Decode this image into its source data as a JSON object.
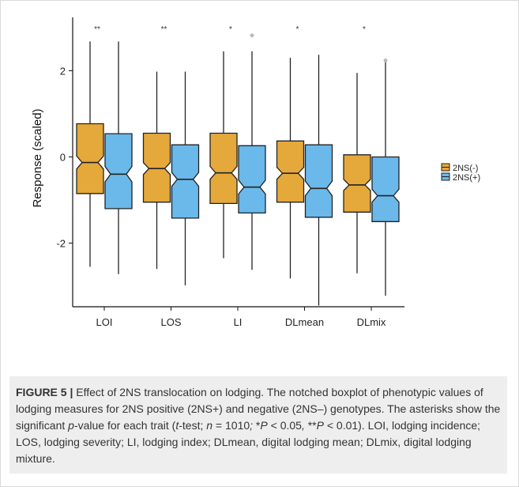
{
  "chart_data": {
    "type": "boxplot",
    "notched": true,
    "title": "",
    "xlabel": "",
    "ylabel": "Response (scaled)",
    "ylim": [
      -3.5,
      3.1
    ],
    "yticks": [
      -2,
      0,
      2
    ],
    "ytick_labels": [
      "-2",
      "0",
      "2"
    ],
    "categories": [
      "LOI",
      "LOS",
      "LI",
      "DLmean",
      "DLmix"
    ],
    "significance": [
      "**",
      "**",
      "*",
      "*",
      "*"
    ],
    "legend": {
      "position": "right",
      "entries": [
        "2NS(-)",
        "2NS(+)"
      ]
    },
    "grid": false,
    "series": [
      {
        "name": "2NS(-)",
        "color": "#e5a83a",
        "boxes": [
          {
            "whisker_low": -2.55,
            "q1": -0.85,
            "median": -0.13,
            "q3": 0.77,
            "whisker_high": 2.68,
            "notch_low": -0.28,
            "notch_high": 0.02,
            "outliers": []
          },
          {
            "whisker_low": -2.6,
            "q1": -1.05,
            "median": -0.27,
            "q3": 0.55,
            "whisker_high": 1.98,
            "notch_low": -0.41,
            "notch_high": -0.13,
            "outliers": []
          },
          {
            "whisker_low": -2.35,
            "q1": -1.08,
            "median": -0.37,
            "q3": 0.55,
            "whisker_high": 2.45,
            "notch_low": -0.52,
            "notch_high": -0.22,
            "outliers": []
          },
          {
            "whisker_low": -2.82,
            "q1": -1.05,
            "median": -0.38,
            "q3": 0.37,
            "whisker_high": 2.3,
            "notch_low": -0.52,
            "notch_high": -0.24,
            "outliers": []
          },
          {
            "whisker_low": -2.7,
            "q1": -1.28,
            "median": -0.65,
            "q3": 0.05,
            "whisker_high": 1.95,
            "notch_low": -0.78,
            "notch_high": -0.52,
            "outliers": []
          }
        ]
      },
      {
        "name": "2NS(+)",
        "color": "#6ab9ea",
        "boxes": [
          {
            "whisker_low": -2.72,
            "q1": -1.2,
            "median": -0.4,
            "q3": 0.54,
            "whisker_high": 2.68,
            "notch_low": -0.58,
            "notch_high": -0.22,
            "outliers": []
          },
          {
            "whisker_low": -2.98,
            "q1": -1.42,
            "median": -0.52,
            "q3": 0.28,
            "whisker_high": 1.98,
            "notch_low": -0.68,
            "notch_high": -0.36,
            "outliers": []
          },
          {
            "whisker_low": -2.62,
            "q1": -1.3,
            "median": -0.7,
            "q3": 0.26,
            "whisker_high": 2.45,
            "notch_low": -0.86,
            "notch_high": -0.54,
            "outliers": [
              2.82
            ]
          },
          {
            "whisker_low": -3.45,
            "q1": -1.4,
            "median": -0.73,
            "q3": 0.28,
            "whisker_high": 2.37,
            "notch_low": -0.9,
            "notch_high": -0.56,
            "outliers": []
          },
          {
            "whisker_low": -3.22,
            "q1": -1.5,
            "median": -0.9,
            "q3": 0.0,
            "whisker_high": 2.22,
            "notch_low": -1.05,
            "notch_high": -0.75,
            "outliers": [
              2.24
            ]
          }
        ]
      }
    ]
  },
  "caption": {
    "label": "FIGURE 5 |",
    "segments": [
      {
        "t": " Effect of 2NS translocation on lodging. The notched boxplot of phenotypic values of lodging measures for 2NS positive (2NS+) and negative (2NS–) genotypes. The asterisks show the significant ",
        "i": false
      },
      {
        "t": "p",
        "i": true
      },
      {
        "t": "-value for each trait (",
        "i": false
      },
      {
        "t": "t",
        "i": true
      },
      {
        "t": "-test; ",
        "i": false
      },
      {
        "t": "n",
        "i": true
      },
      {
        "t": " = 1010",
        "i": false
      },
      {
        "t": ";",
        "i": true
      },
      {
        "t": " *",
        "i": false
      },
      {
        "t": "P",
        "i": true
      },
      {
        "t": " < 0.05",
        "i": false
      },
      {
        "t": ",",
        "i": true
      },
      {
        "t": " **",
        "i": false
      },
      {
        "t": "P",
        "i": true
      },
      {
        "t": " < 0.01). LOI, lodging incidence; LOS, lodging severity; LI, lodging index; DLmean, digital lodging mean; DLmix, digital lodging mixture.",
        "i": false
      }
    ]
  }
}
